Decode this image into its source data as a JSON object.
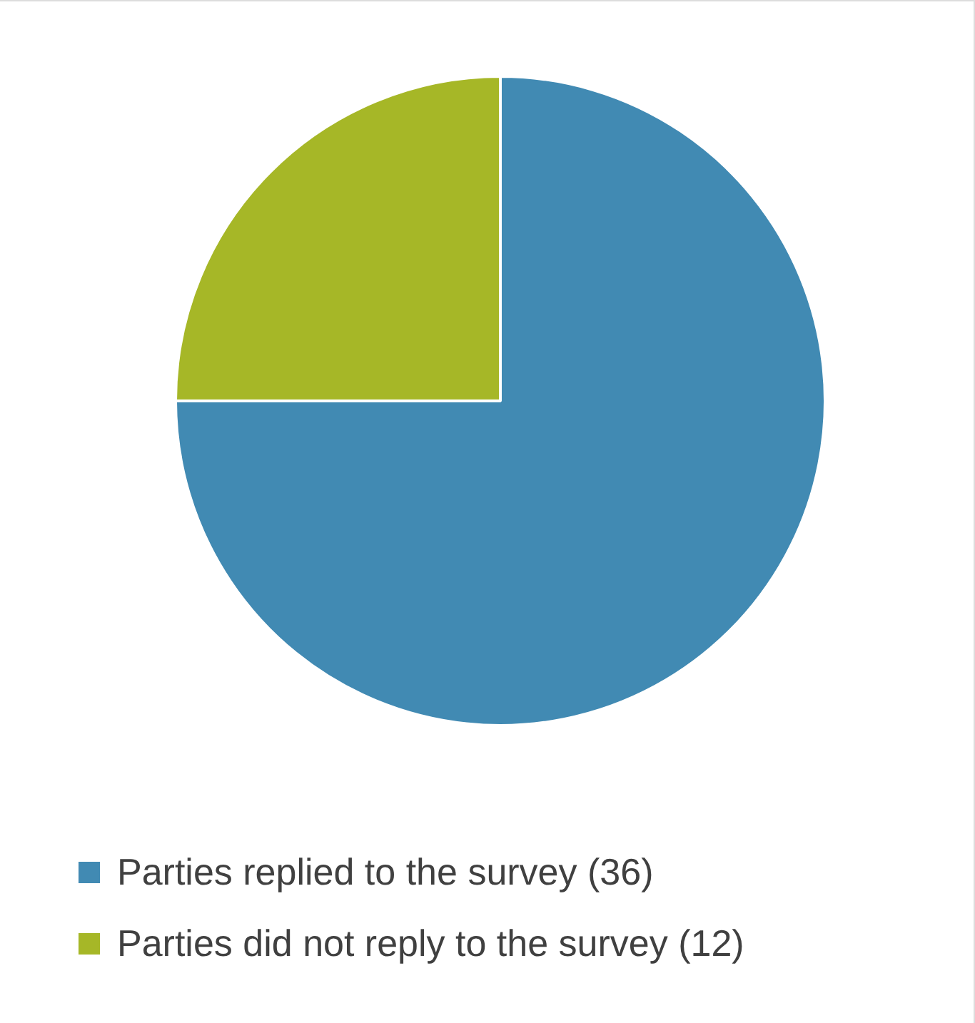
{
  "chart_data": {
    "type": "pie",
    "categories": [
      "Parties replied to the survey (36)",
      "Parties did not reply to the survey (12)"
    ],
    "values": [
      36,
      12
    ],
    "colors": [
      "#418ab3",
      "#a6b727"
    ],
    "legend": "bottom"
  }
}
